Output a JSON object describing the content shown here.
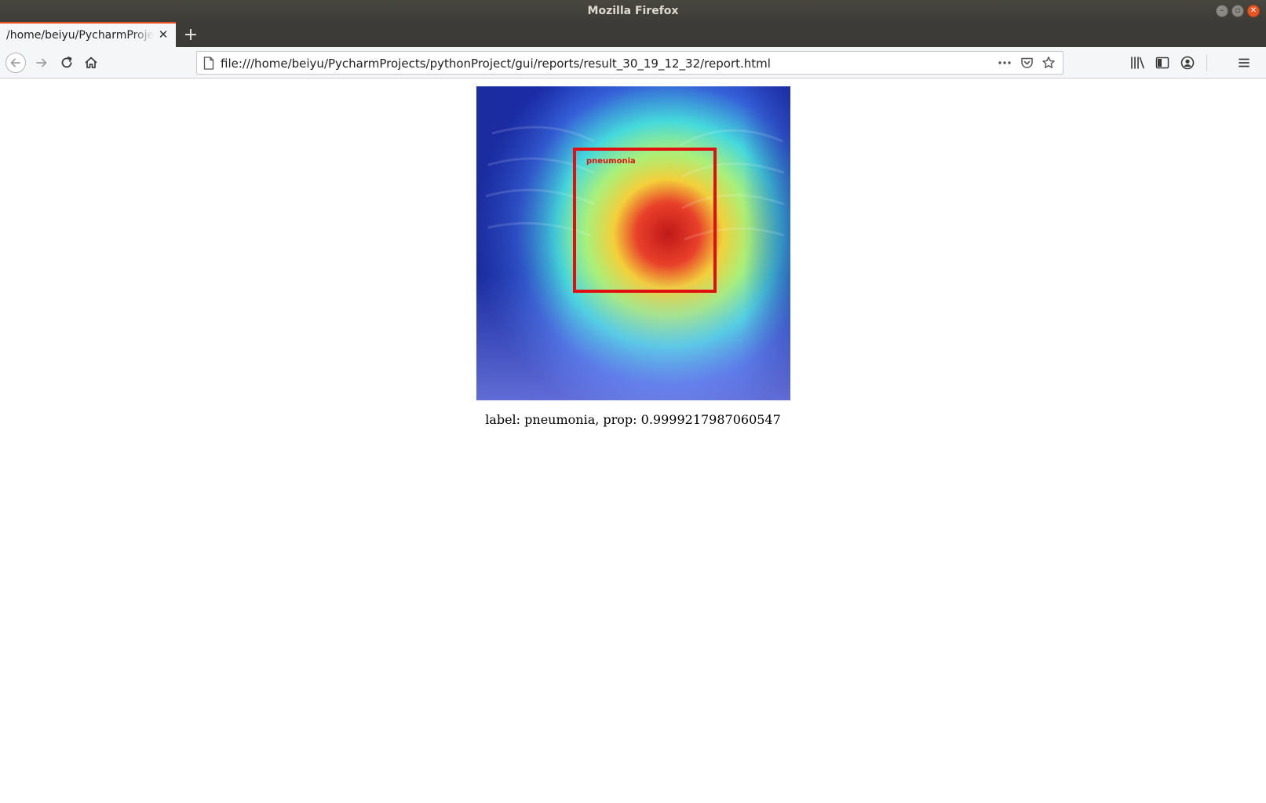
{
  "window": {
    "title": "Mozilla Firefox",
    "buttons": [
      "minimize",
      "maximize",
      "close"
    ]
  },
  "tabs": [
    {
      "label": "/home/beiyu/PycharmProjects/pythonProject/gui/reports/result_30_19_12_32/report.html",
      "active": true,
      "close_icon": "close-icon"
    }
  ],
  "new_tab_icon": "plus-icon",
  "nav": {
    "back_icon": "back-arrow-icon",
    "forward_icon": "forward-arrow-icon",
    "reload_icon": "reload-icon",
    "home_icon": "home-icon"
  },
  "urlbar": {
    "url": "file:///home/beiyu/PycharmProjects/pythonProject/gui/reports/result_30_19_12_32/report.html",
    "page_icon": "page-icon",
    "actions": [
      "more-actions-icon",
      "pocket-icon",
      "bookmark-star-icon"
    ]
  },
  "toolbar_right": [
    "library-icon",
    "sidebar-icon",
    "account-icon",
    "menu-icon"
  ],
  "report": {
    "image_annotation": "pneumonia",
    "caption": "label: pneumonia, prop: 0.9999217987060547"
  },
  "colors": {
    "titlebar": "#3d3c37",
    "tab_accent": "#e95420",
    "box": "#e01010"
  }
}
